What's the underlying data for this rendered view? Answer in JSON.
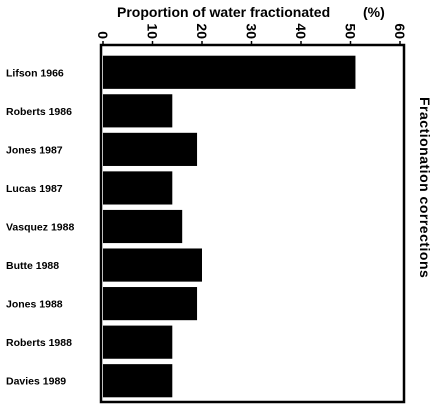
{
  "chart_data": {
    "type": "bar",
    "orientation": "horizontal",
    "title": "Proportion of water fractionated",
    "title_unit": "(%)",
    "side_label": "Fractionation corrections",
    "categories": [
      "Lifson 1966",
      "Roberts 1986",
      "Jones 1987",
      "Lucas 1987",
      "Vasquez 1988",
      "Butte 1988",
      "Jones 1988",
      "Roberts 1988",
      "Davies 1989"
    ],
    "values": [
      51,
      14,
      19,
      14,
      16,
      20,
      19,
      14,
      14
    ],
    "xlim": [
      0,
      60
    ],
    "xticks": [
      0,
      10,
      20,
      30,
      40,
      50,
      60
    ],
    "tick_labels": [
      "0",
      "10",
      "20",
      "30",
      "40",
      "50",
      "60"
    ],
    "axis_position": "top",
    "grid": false,
    "bar_color": "#000000"
  }
}
